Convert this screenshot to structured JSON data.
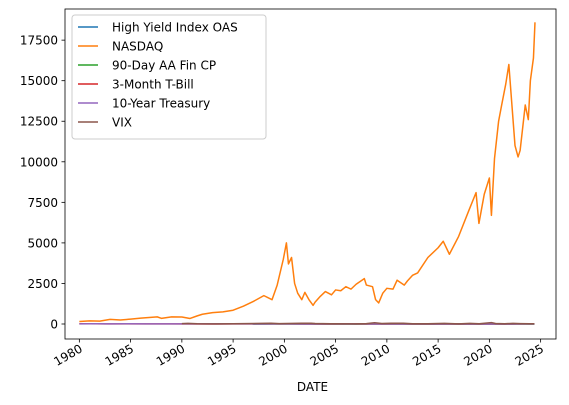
{
  "chart_data": {
    "type": "line",
    "title": "",
    "xlabel": "DATE",
    "ylabel": "",
    "xlim": [
      1978.6,
      2026.5
    ],
    "ylim": [
      -925,
      19420
    ],
    "x_ticks": [
      1980,
      1985,
      1990,
      1995,
      2000,
      2005,
      2010,
      2015,
      2020,
      2025
    ],
    "y_ticks": [
      0,
      2500,
      5000,
      7500,
      10000,
      12500,
      15000,
      17500
    ],
    "grid": false,
    "legend_position": "top-left",
    "series": [
      {
        "name": "High Yield Index OAS",
        "color": "#1f77b4",
        "points": [
          [
            1996.9,
            3.1
          ],
          [
            1998.0,
            3.0
          ],
          [
            1999.0,
            5.5
          ],
          [
            2001.0,
            8.5
          ],
          [
            2002.8,
            10.5
          ],
          [
            2004.0,
            4.0
          ],
          [
            2007.0,
            2.6
          ],
          [
            2008.9,
            19.8
          ],
          [
            2010.0,
            6.5
          ],
          [
            2014.5,
            3.5
          ],
          [
            2016.1,
            8.0
          ],
          [
            2018.0,
            3.5
          ],
          [
            2020.2,
            10.5
          ],
          [
            2021.5,
            3.0
          ],
          [
            2022.7,
            5.5
          ],
          [
            2024.0,
            3.6
          ],
          [
            2024.4,
            3.2
          ]
        ]
      },
      {
        "name": "NASDAQ",
        "color": "#ff7f0e",
        "points": [
          [
            1980.0,
            150
          ],
          [
            1981.0,
            195
          ],
          [
            1982.0,
            175
          ],
          [
            1983.0,
            285
          ],
          [
            1984.0,
            250
          ],
          [
            1985.0,
            300
          ],
          [
            1986.0,
            360
          ],
          [
            1987.6,
            440
          ],
          [
            1988.0,
            350
          ],
          [
            1989.0,
            440
          ],
          [
            1990.0,
            430
          ],
          [
            1990.8,
            340
          ],
          [
            1991.5,
            500
          ],
          [
            1992.0,
            600
          ],
          [
            1993.0,
            700
          ],
          [
            1994.0,
            750
          ],
          [
            1995.0,
            850
          ],
          [
            1996.0,
            1100
          ],
          [
            1997.0,
            1400
          ],
          [
            1998.0,
            1750
          ],
          [
            1998.8,
            1500
          ],
          [
            1999.3,
            2400
          ],
          [
            1999.9,
            4000
          ],
          [
            2000.2,
            5000
          ],
          [
            2000.4,
            3700
          ],
          [
            2000.7,
            4100
          ],
          [
            2001.0,
            2500
          ],
          [
            2001.3,
            1900
          ],
          [
            2001.7,
            1500
          ],
          [
            2002.0,
            1950
          ],
          [
            2002.4,
            1500
          ],
          [
            2002.8,
            1150
          ],
          [
            2003.0,
            1350
          ],
          [
            2003.5,
            1700
          ],
          [
            2004.0,
            2000
          ],
          [
            2004.6,
            1800
          ],
          [
            2005.0,
            2100
          ],
          [
            2005.5,
            2050
          ],
          [
            2006.0,
            2300
          ],
          [
            2006.5,
            2150
          ],
          [
            2007.0,
            2450
          ],
          [
            2007.8,
            2800
          ],
          [
            2008.0,
            2400
          ],
          [
            2008.6,
            2300
          ],
          [
            2008.9,
            1500
          ],
          [
            2009.2,
            1300
          ],
          [
            2009.6,
            1900
          ],
          [
            2010.0,
            2200
          ],
          [
            2010.6,
            2150
          ],
          [
            2011.0,
            2700
          ],
          [
            2011.7,
            2400
          ],
          [
            2012.0,
            2650
          ],
          [
            2012.5,
            3000
          ],
          [
            2013.0,
            3150
          ],
          [
            2014.0,
            4100
          ],
          [
            2015.0,
            4700
          ],
          [
            2015.5,
            5100
          ],
          [
            2016.1,
            4300
          ],
          [
            2017.0,
            5400
          ],
          [
            2018.0,
            7000
          ],
          [
            2018.7,
            8100
          ],
          [
            2018.98,
            6200
          ],
          [
            2019.5,
            8000
          ],
          [
            2020.0,
            9000
          ],
          [
            2020.2,
            6700
          ],
          [
            2020.5,
            10200
          ],
          [
            2020.9,
            12500
          ],
          [
            2021.2,
            13500
          ],
          [
            2021.6,
            14800
          ],
          [
            2021.9,
            16000
          ],
          [
            2022.2,
            13500
          ],
          [
            2022.5,
            11000
          ],
          [
            2022.8,
            10300
          ],
          [
            2023.0,
            10700
          ],
          [
            2023.5,
            13500
          ],
          [
            2023.8,
            12600
          ],
          [
            2024.0,
            15000
          ],
          [
            2024.3,
            16400
          ],
          [
            2024.45,
            18600
          ]
        ]
      },
      {
        "name": "90-Day AA Fin CP",
        "color": "#2ca02c",
        "points": [
          [
            1997.0,
            5.5
          ],
          [
            1998.0,
            5.5
          ],
          [
            2000.5,
            6.5
          ],
          [
            2001.9,
            1.8
          ],
          [
            2003.5,
            1.0
          ],
          [
            2006.5,
            5.3
          ],
          [
            2008.0,
            3.0
          ],
          [
            2009.0,
            0.3
          ],
          [
            2016.0,
            0.6
          ],
          [
            2019.0,
            2.5
          ],
          [
            2020.3,
            0.2
          ],
          [
            2022.0,
            0.3
          ],
          [
            2023.5,
            5.4
          ],
          [
            2024.4,
            5.3
          ]
        ]
      },
      {
        "name": "3-Month T-Bill",
        "color": "#d62728",
        "points": [
          [
            1980.0,
            12
          ],
          [
            1981.0,
            15
          ],
          [
            1982.5,
            8
          ],
          [
            1984.0,
            10
          ],
          [
            1987.0,
            5.5
          ],
          [
            1989.0,
            8.5
          ],
          [
            1993.0,
            3.0
          ],
          [
            1995.0,
            5.7
          ],
          [
            2000.5,
            6.2
          ],
          [
            2002.0,
            1.7
          ],
          [
            2004.0,
            1.0
          ],
          [
            2006.5,
            5.0
          ],
          [
            2008.5,
            0.1
          ],
          [
            2015.9,
            0.1
          ],
          [
            2019.0,
            2.4
          ],
          [
            2020.3,
            0.1
          ],
          [
            2022.0,
            0.1
          ],
          [
            2023.5,
            5.4
          ],
          [
            2024.4,
            5.4
          ]
        ]
      },
      {
        "name": "10-Year Treasury",
        "color": "#9467bd",
        "points": [
          [
            1980.0,
            11
          ],
          [
            1981.7,
            15.8
          ],
          [
            1983.0,
            10.5
          ],
          [
            1984.5,
            13.5
          ],
          [
            1986.5,
            7.0
          ],
          [
            1988.0,
            9.0
          ],
          [
            1990.0,
            8.5
          ],
          [
            1993.8,
            5.3
          ],
          [
            1994.9,
            8.0
          ],
          [
            1998.8,
            4.5
          ],
          [
            2000.0,
            6.8
          ],
          [
            2003.5,
            3.3
          ],
          [
            2007.0,
            5.2
          ],
          [
            2008.95,
            2.1
          ],
          [
            2010.0,
            3.8
          ],
          [
            2012.5,
            1.4
          ],
          [
            2013.9,
            3.0
          ],
          [
            2016.5,
            1.4
          ],
          [
            2018.8,
            3.2
          ],
          [
            2020.6,
            0.5
          ],
          [
            2022.0,
            1.8
          ],
          [
            2023.8,
            5.0
          ],
          [
            2024.4,
            4.6
          ]
        ]
      },
      {
        "name": "VIX",
        "color": "#8c564b",
        "points": [
          [
            1990.0,
            22
          ],
          [
            1990.6,
            36
          ],
          [
            1991.5,
            17
          ],
          [
            1993.5,
            11
          ],
          [
            1995.0,
            12
          ],
          [
            1997.8,
            38
          ],
          [
            1998.7,
            45
          ],
          [
            1999.5,
            25
          ],
          [
            2001.7,
            43
          ],
          [
            2002.6,
            45
          ],
          [
            2003.0,
            30
          ],
          [
            2004.5,
            14
          ],
          [
            2006.9,
            10
          ],
          [
            2008.0,
            25
          ],
          [
            2008.8,
            80
          ],
          [
            2009.5,
            30
          ],
          [
            2010.4,
            45
          ],
          [
            2011.6,
            48
          ],
          [
            2012.5,
            17
          ],
          [
            2014.0,
            13
          ],
          [
            2015.6,
            40
          ],
          [
            2017.0,
            10
          ],
          [
            2018.1,
            37
          ],
          [
            2019.0,
            15
          ],
          [
            2020.2,
            82
          ],
          [
            2020.6,
            28
          ],
          [
            2021.5,
            18
          ],
          [
            2022.3,
            35
          ],
          [
            2023.0,
            20
          ],
          [
            2023.9,
            13
          ],
          [
            2024.4,
            15
          ]
        ]
      }
    ]
  }
}
